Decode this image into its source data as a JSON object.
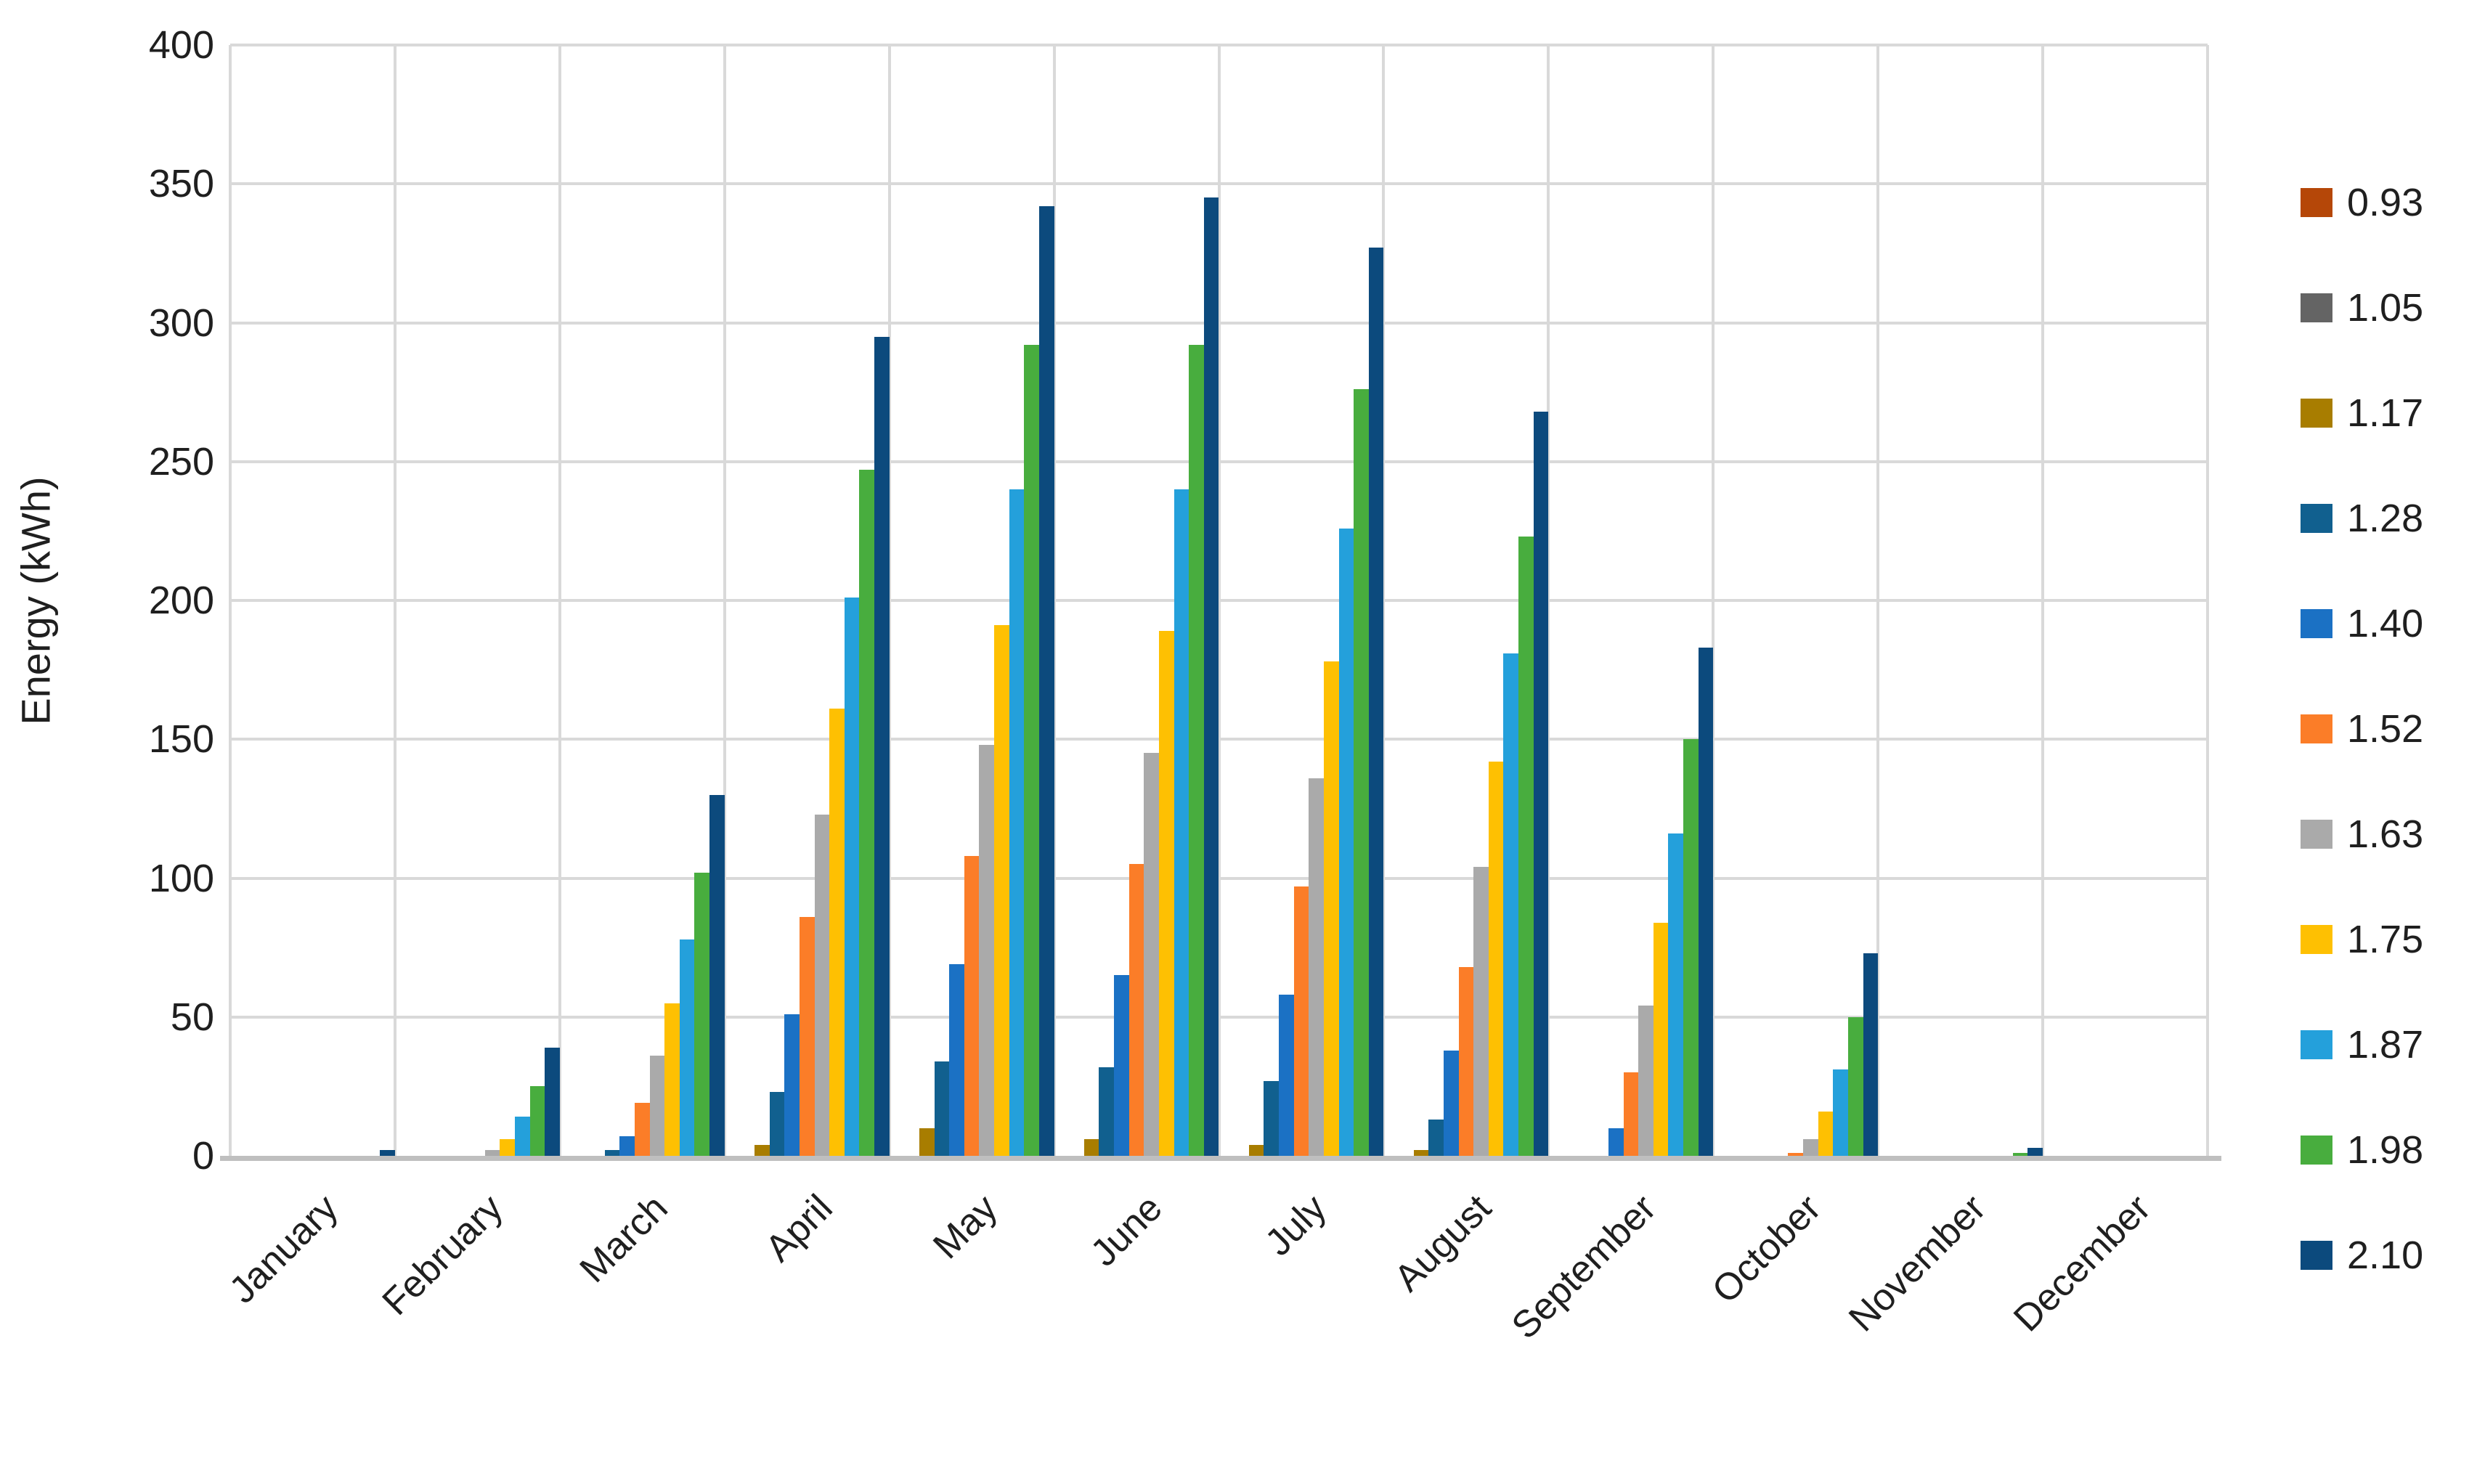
{
  "chart_data": {
    "type": "bar",
    "title": "",
    "xlabel": "",
    "ylabel": "Energy (kWh)",
    "ylim": [
      0,
      400
    ],
    "yticks": [
      0,
      50,
      100,
      150,
      200,
      250,
      300,
      350,
      400
    ],
    "grid": "both",
    "legend_position": "right",
    "categories": [
      "January",
      "February",
      "March",
      "April",
      "May",
      "June",
      "July",
      "August",
      "September",
      "October",
      "November",
      "December"
    ],
    "series": [
      {
        "name": "0.93",
        "color": "#B54708",
        "values": [
          0,
          0,
          0,
          0,
          0,
          0,
          0,
          0,
          0,
          0,
          0,
          0
        ]
      },
      {
        "name": "1.05",
        "color": "#646464",
        "values": [
          0,
          0,
          0,
          0,
          0,
          0,
          0,
          0,
          0,
          0,
          0,
          0
        ]
      },
      {
        "name": "1.17",
        "color": "#A87D00",
        "values": [
          0,
          0,
          0,
          4,
          10,
          6,
          4,
          2,
          0,
          0,
          0,
          0
        ]
      },
      {
        "name": "1.28",
        "color": "#11608F",
        "values": [
          0,
          0,
          2,
          23,
          34,
          32,
          27,
          13,
          0,
          0,
          0,
          0
        ]
      },
      {
        "name": "1.40",
        "color": "#1B71C4",
        "values": [
          0,
          0,
          7,
          51,
          69,
          65,
          58,
          38,
          10,
          0,
          0,
          0
        ]
      },
      {
        "name": "1.52",
        "color": "#FB7D28",
        "values": [
          0,
          0,
          19,
          86,
          108,
          105,
          97,
          68,
          30,
          1,
          0,
          0
        ]
      },
      {
        "name": "1.63",
        "color": "#AAAAAA",
        "values": [
          0,
          2,
          36,
          123,
          148,
          145,
          136,
          104,
          54,
          6,
          0,
          0
        ]
      },
      {
        "name": "1.75",
        "color": "#FEC002",
        "values": [
          0,
          6,
          55,
          161,
          191,
          189,
          178,
          142,
          84,
          16,
          0,
          0
        ]
      },
      {
        "name": "1.87",
        "color": "#24A0DB",
        "values": [
          0,
          14,
          78,
          201,
          240,
          240,
          226,
          181,
          116,
          31,
          0,
          0
        ]
      },
      {
        "name": "1.98",
        "color": "#48AD3E",
        "values": [
          0,
          25,
          102,
          247,
          292,
          292,
          276,
          223,
          150,
          50,
          1,
          0
        ]
      },
      {
        "name": "2.10",
        "color": "#0C4A7D",
        "values": [
          2,
          39,
          130,
          295,
          342,
          345,
          327,
          268,
          183,
          73,
          3,
          0
        ]
      }
    ]
  }
}
